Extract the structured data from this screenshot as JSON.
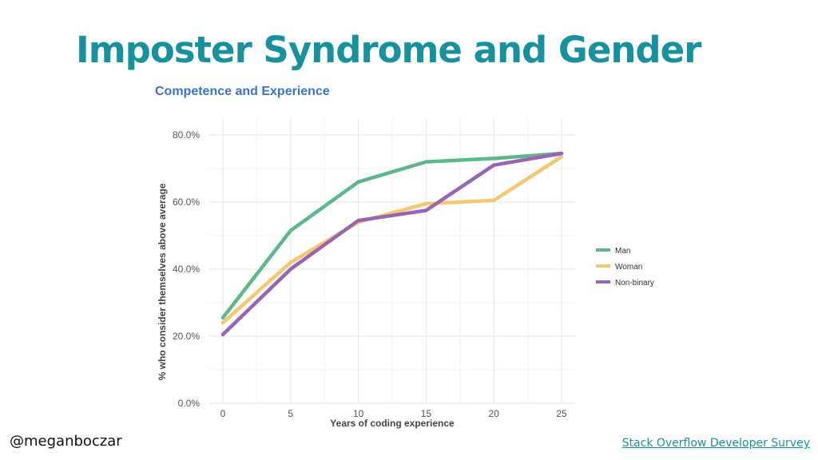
{
  "slide": {
    "title": "Imposter Syndrome and Gender"
  },
  "footer": {
    "handle": "@meganboczar",
    "source_link": "Stack Overflow Developer Survey"
  },
  "chart_data": {
    "type": "line",
    "title": "Competence and Experience",
    "xlabel": "Years of coding experience",
    "ylabel": "% who consider themselves above average",
    "x": [
      0,
      5,
      10,
      15,
      20,
      25
    ],
    "xlim": [
      -1,
      26
    ],
    "ylim": [
      0,
      85
    ],
    "x_ticks": [
      "0",
      "5",
      "10",
      "15",
      "20",
      "25"
    ],
    "y_ticks": [
      0,
      20,
      40,
      60,
      80
    ],
    "y_tick_labels": [
      "0.0%",
      "20.0%",
      "40.0%",
      "60.0%",
      "80.0%"
    ],
    "grid": true,
    "legend_position": "right",
    "series": [
      {
        "name": "Man",
        "color": "#5cb88a",
        "values": [
          25.5,
          51.5,
          66,
          72,
          73,
          74.5
        ]
      },
      {
        "name": "Woman",
        "color": "#f5c76f",
        "values": [
          24,
          42,
          54,
          59.5,
          60.5,
          73.5
        ]
      },
      {
        "name": "Non-binary",
        "color": "#9a63b4",
        "values": [
          20.5,
          40,
          54.5,
          57.5,
          71,
          74.5
        ]
      }
    ]
  }
}
